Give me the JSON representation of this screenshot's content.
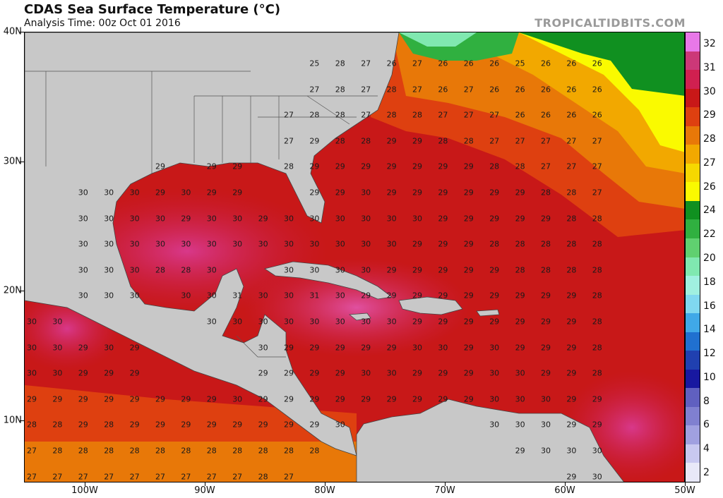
{
  "header": {
    "title": "CDAS Sea Surface Temperature (°C)",
    "subtitle": "Analysis Time: 00z Oct 01 2016",
    "brand": "TROPICALTIDBITS.COM"
  },
  "map": {
    "lat_labels": [
      "40N",
      "30N",
      "20N",
      "10N"
    ],
    "lon_labels": [
      "100W",
      "90W",
      "80W",
      "70W",
      "60W",
      "50W"
    ],
    "land_color": "#c8c8c8",
    "border_color": "#444444"
  },
  "colorbar": {
    "labels": [
      "32",
      "31",
      "30",
      "29",
      "28",
      "27",
      "26",
      "24",
      "22",
      "20",
      "18",
      "16",
      "14",
      "12",
      "10",
      "8",
      "6",
      "4",
      "2"
    ],
    "colors": [
      "#e878e8",
      "#cc3878",
      "#d02050",
      "#c81818",
      "#de4010",
      "#e87808",
      "#f2a800",
      "#f6d800",
      "#fafa00",
      "#109020",
      "#30b040",
      "#60d070",
      "#80e8b0",
      "#a0f0e0",
      "#80d8f0",
      "#40a8e8",
      "#2070d0",
      "#2040b0",
      "#1818a0",
      "#6060c0",
      "#8080d0",
      "#a0a0e0",
      "#c8c8f0",
      "#e8e8f8"
    ]
  },
  "sst_values": [
    [
      "",
      "",
      "",
      "",
      "",
      "",
      "",
      "",
      "",
      "",
      "",
      "25",
      "28",
      "27",
      "26",
      "27",
      "26",
      "26",
      "26",
      "25",
      "26",
      "26",
      "26"
    ],
    [
      "",
      "",
      "",
      "",
      "",
      "",
      "",
      "",
      "",
      "",
      "",
      "27",
      "28",
      "27",
      "28",
      "27",
      "26",
      "27",
      "26",
      "26",
      "26",
      "26",
      "26"
    ],
    [
      "",
      "",
      "",
      "",
      "",
      "",
      "",
      "",
      "",
      "",
      "27",
      "28",
      "28",
      "27",
      "28",
      "28",
      "27",
      "27",
      "27",
      "26",
      "26",
      "26",
      "26"
    ],
    [
      "",
      "",
      "",
      "",
      "",
      "",
      "",
      "",
      "",
      "",
      "27",
      "29",
      "28",
      "28",
      "29",
      "29",
      "28",
      "28",
      "27",
      "27",
      "27",
      "27",
      "27"
    ],
    [
      "",
      "",
      "",
      "",
      "",
      "29",
      "",
      "29",
      "29",
      "",
      "28",
      "29",
      "29",
      "29",
      "29",
      "29",
      "29",
      "29",
      "28",
      "28",
      "27",
      "27",
      "27"
    ],
    [
      "",
      "",
      "30",
      "30",
      "30",
      "29",
      "30",
      "29",
      "29",
      "",
      "",
      "29",
      "29",
      "30",
      "29",
      "29",
      "29",
      "29",
      "29",
      "29",
      "28",
      "28",
      "27"
    ],
    [
      "",
      "",
      "30",
      "30",
      "30",
      "30",
      "29",
      "30",
      "30",
      "29",
      "30",
      "30",
      "30",
      "30",
      "30",
      "30",
      "29",
      "29",
      "29",
      "29",
      "29",
      "28",
      "28"
    ],
    [
      "",
      "",
      "30",
      "30",
      "30",
      "30",
      "30",
      "30",
      "30",
      "30",
      "30",
      "30",
      "30",
      "30",
      "30",
      "29",
      "29",
      "29",
      "28",
      "28",
      "28",
      "28",
      "28"
    ],
    [
      "",
      "",
      "30",
      "30",
      "30",
      "28",
      "28",
      "30",
      "",
      "",
      "30",
      "30",
      "30",
      "30",
      "29",
      "29",
      "29",
      "29",
      "29",
      "28",
      "28",
      "28",
      "28"
    ],
    [
      "",
      "",
      "30",
      "30",
      "30",
      "",
      "30",
      "30",
      "31",
      "30",
      "30",
      "31",
      "30",
      "29",
      "29",
      "29",
      "29",
      "29",
      "29",
      "29",
      "29",
      "29",
      "28"
    ],
    [
      "30",
      "30",
      "",
      "",
      "",
      "",
      "",
      "30",
      "30",
      "30",
      "30",
      "30",
      "30",
      "30",
      "30",
      "29",
      "29",
      "29",
      "29",
      "29",
      "29",
      "29",
      "28"
    ],
    [
      "30",
      "30",
      "29",
      "30",
      "29",
      "",
      "",
      "",
      "",
      "30",
      "29",
      "29",
      "29",
      "29",
      "29",
      "30",
      "30",
      "29",
      "30",
      "29",
      "29",
      "29",
      "28"
    ],
    [
      "30",
      "30",
      "29",
      "29",
      "29",
      "",
      "",
      "",
      "",
      "29",
      "29",
      "29",
      "29",
      "30",
      "30",
      "29",
      "29",
      "29",
      "30",
      "30",
      "29",
      "29",
      "28"
    ],
    [
      "29",
      "29",
      "29",
      "29",
      "29",
      "29",
      "29",
      "29",
      "30",
      "29",
      "29",
      "29",
      "29",
      "29",
      "29",
      "29",
      "29",
      "29",
      "30",
      "30",
      "30",
      "29",
      "29"
    ],
    [
      "28",
      "28",
      "29",
      "28",
      "29",
      "29",
      "29",
      "29",
      "29",
      "29",
      "29",
      "29",
      "30",
      "",
      "",
      "",
      "",
      "",
      "30",
      "30",
      "30",
      "29",
      "29"
    ],
    [
      "27",
      "28",
      "28",
      "28",
      "28",
      "28",
      "28",
      "28",
      "28",
      "28",
      "28",
      "28",
      "",
      "",
      "",
      "",
      "",
      "",
      "",
      "29",
      "30",
      "30",
      "30"
    ],
    [
      "27",
      "27",
      "27",
      "27",
      "27",
      "27",
      "27",
      "27",
      "27",
      "28",
      "27",
      "",
      "",
      "",
      "",
      "",
      "",
      "",
      "",
      "",
      "",
      "29",
      "30"
    ]
  ]
}
